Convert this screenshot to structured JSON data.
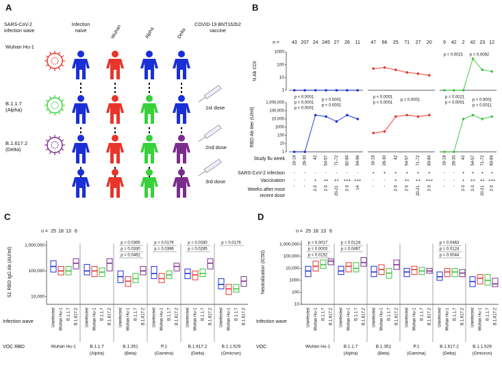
{
  "panel_a": {
    "label": "A",
    "wave_title": [
      "SARS-CoV-2",
      "infection wave"
    ],
    "columns": [
      [
        "Infection",
        "naive"
      ],
      [
        "Wuhan"
      ],
      [
        "Alpha"
      ],
      [
        "Delta"
      ]
    ],
    "vaccine_title": [
      "COVID-19 BNT162b2",
      "vaccine"
    ],
    "variants": [
      [
        "Wuhan Hu-1"
      ],
      [
        "B.1.1.7",
        "(Alpha)"
      ],
      [
        "B.1.617.2",
        "(Delta)"
      ]
    ],
    "doses": [
      "1st dose",
      "2nd dose",
      "3rd dose"
    ]
  },
  "panel_b": {
    "label": "B",
    "n_label": "n =",
    "log_scale": true,
    "top_y_label": "N Ab COI",
    "top_ylim": [
      1,
      1000
    ],
    "top_yticks": [
      1,
      10,
      100,
      1000
    ],
    "bottom_y_label": "RBD Ab titer (U/ml)",
    "bottom_ylim": [
      1,
      1000000
    ],
    "bottom_yticks": [
      1,
      10,
      100,
      1000,
      {
        "value": 10000,
        "label": "10,000"
      },
      {
        "value": 100000,
        "label": "100,000"
      },
      {
        "value": 1000000,
        "label": "1,000,000"
      }
    ],
    "row_labels": {
      "week": "Study flu week",
      "infection": "SARS-CoV-2 infection",
      "vaccination": "Vaccination",
      "weeks_after": [
        "Weeks after most",
        "recent dose"
      ]
    },
    "groups": [
      {
        "color": "#1a2fd6",
        "n": [
          43,
          207,
          24,
          245,
          27,
          26,
          11
        ],
        "weeks": [
          "16-18",
          "28-30",
          "42",
          "54-57",
          "71-72",
          "82-84",
          "94-96"
        ],
        "infection": [
          "-",
          "-",
          "-",
          "-",
          "-",
          "-",
          "-"
        ],
        "vaccination": [
          "-",
          "-",
          "+",
          "++",
          "++",
          "+++",
          "+++"
        ],
        "weeks_after": [
          "-",
          "-",
          "2-3",
          "2-3",
          "20-21",
          "2-3",
          "14"
        ],
        "top_values": [
          1,
          1,
          1,
          1,
          1,
          1,
          1
        ],
        "bottom_values": [
          1,
          1,
          30000,
          20000,
          5000,
          30000,
          10000
        ],
        "bottom_p_values": [
          "p < 0.0001",
          "p < 0.0001",
          "p = 0.0001",
          "p < 0.0001",
          "p < 0.0001"
        ]
      },
      {
        "color": "#e8352b",
        "n": [
          47,
          66,
          25,
          71,
          27,
          20
        ],
        "weeks": [
          "16-18",
          "28-30",
          "42",
          "54-57",
          "71-72",
          "83-84"
        ],
        "infection": [
          "+",
          "+",
          "+",
          "+",
          "+",
          "+"
        ],
        "vaccination": [
          "-",
          "-",
          "+",
          "++",
          "++",
          "+++"
        ],
        "weeks_after": [
          "-",
          "-",
          "2-3",
          "2-3",
          "20-21",
          "2-3"
        ],
        "top_values": [
          50,
          60,
          40,
          25,
          20,
          15
        ],
        "bottom_values": [
          200,
          300,
          20000,
          30000,
          20000,
          30000
        ],
        "bottom_p_values": [
          "p < 0.0001",
          "p = 0.0001",
          "p < 0.0001"
        ]
      },
      {
        "color": "#37c43a",
        "n": [
          9,
          42,
          2,
          42,
          23,
          12
        ],
        "weeks": [
          "16-18",
          "28-30",
          "42",
          "54-57",
          "71-72",
          "83-84"
        ],
        "infection": [
          "-",
          "-",
          "+",
          "+",
          "+",
          "+"
        ],
        "vaccination": [
          "-",
          "-",
          "+",
          "++",
          "++",
          "+++"
        ],
        "weeks_after": [
          "-",
          "-",
          "2-3",
          "2-3",
          "20-21",
          "2-3"
        ],
        "top_values": [
          1,
          1,
          1,
          300,
          40,
          30
        ],
        "bottom_values": [
          1,
          1,
          10000,
          30000,
          10000,
          20000
        ],
        "top_p_values": [
          "p = 0.0021",
          "p = 0.0082"
        ],
        "bottom_p_values": [
          "p = 0.0021",
          "p < 0.0001",
          "p < 0.0001",
          "p = 0.0011"
        ]
      }
    ]
  },
  "panel_c": {
    "label": "C",
    "n_label": "n =",
    "n": [
      25,
      18,
      13,
      6
    ],
    "y_label": "S1 RBD IgG Ab (AU/ml)",
    "log_scale": true,
    "ylim": [
      5000,
      1500000
    ],
    "yticks": [
      {
        "value": 10000,
        "label": "10,000"
      },
      {
        "value": 100000,
        "label": "100,000"
      },
      {
        "value": 1000000,
        "label": "1,000,000"
      }
    ],
    "wave_label": "Infection wave",
    "waves": [
      "Uninfected",
      "Wuhan Hu-1",
      "B.1.1.7",
      "B.1.617.2"
    ],
    "colors": [
      "#1a2fd6",
      "#e8352b",
      "#37c43a",
      "#7b2d8e"
    ],
    "voc_label": "VOC RBD",
    "groups": [
      {
        "voc": [
          "Wuhan Hu-1"
        ],
        "q1": [
          90000,
          70000,
          70000,
          120000
        ],
        "median": [
          150000,
          100000,
          100000,
          200000
        ],
        "q3": [
          250000,
          150000,
          150000,
          300000
        ]
      },
      {
        "voc": [
          "B.1.1.7",
          "(Alpha)"
        ],
        "q1": [
          70000,
          60000,
          60000,
          100000
        ],
        "median": [
          100000,
          100000,
          90000,
          200000
        ],
        "q3": [
          180000,
          150000,
          130000,
          300000
        ]
      },
      {
        "voc": [
          "B.1.351",
          "(Beta)"
        ],
        "q1": [
          35000,
          25000,
          35000,
          70000
        ],
        "median": [
          60000,
          40000,
          50000,
          100000
        ],
        "q3": [
          100000,
          60000,
          80000,
          150000
        ],
        "p_values": [
          "p = 0.0365",
          "p = 0.0330",
          "p = 0.0462"
        ]
      },
      {
        "voc": [
          "P.1",
          "(Gamma)"
        ],
        "q1": [
          50000,
          35000,
          50000,
          100000
        ],
        "median": [
          80000,
          50000,
          70000,
          150000
        ],
        "q3": [
          150000,
          80000,
          100000,
          200000
        ],
        "p_values": [
          "p = 0.0176",
          "p = 0.0396"
        ]
      },
      {
        "voc": [
          "B.1.617.2",
          "(Delta)"
        ],
        "q1": [
          50000,
          45000,
          60000,
          120000
        ],
        "median": [
          80000,
          70000,
          80000,
          200000
        ],
        "q3": [
          120000,
          100000,
          120000,
          300000
        ],
        "p_values": [
          "p = 0.0330",
          "p = 0.0285"
        ]
      },
      {
        "voc": [
          "B.1.1.529",
          "(Omicron)"
        ],
        "q1": [
          20000,
          12000,
          15000,
          25000
        ],
        "median": [
          30000,
          20000,
          20000,
          40000
        ],
        "q3": [
          50000,
          30000,
          30000,
          60000
        ],
        "p_values": [
          "p = 0.0176"
        ]
      }
    ]
  },
  "panel_d": {
    "label": "D",
    "n_label": "n =",
    "n": [
      25,
      18,
      13,
      6
    ],
    "y_label": "Neutralization (IC50)",
    "log_scale": true,
    "ylim": [
      10,
      2000000
    ],
    "yticks": [
      10,
      100,
      1000,
      {
        "value": 10000,
        "label": "10,000"
      },
      {
        "value": 100000,
        "label": "100,000"
      },
      {
        "value": 1000000,
        "label": "1,000,000"
      }
    ],
    "wave_label": "Infection wave",
    "waves": [
      "Uninfected",
      "Wuhan Hu-1",
      "B.1.1.7",
      "B.1.617.2"
    ],
    "colors": [
      "#1a2fd6",
      "#e8352b",
      "#37c43a",
      "#7b2d8e"
    ],
    "voc_label": "VOC",
    "groups": [
      {
        "voc": [
          "Wuhan Hu-1"
        ],
        "q1": [
          2000,
          6000,
          10000,
          20000
        ],
        "median": [
          6000,
          15000,
          20000,
          40000
        ],
        "q3": [
          15000,
          40000,
          50000,
          60000
        ],
        "p_values": [
          "p = 0.0017",
          "p = 0.0003",
          "p = 0.0152"
        ]
      },
      {
        "voc": [
          "B.1.1.7",
          "(Alpha)"
        ],
        "q1": [
          3000,
          5000,
          5000,
          15000
        ],
        "median": [
          6000,
          15000,
          10000,
          30000
        ],
        "q3": [
          15000,
          30000,
          30000,
          80000
        ],
        "p_values": [
          "p = 0.0124",
          "p = 0.0467"
        ]
      },
      {
        "voc": [
          "B.1.351",
          "(Beta)"
        ],
        "q1": [
          2000,
          3000,
          1500,
          8000
        ],
        "median": [
          5000,
          8000,
          4000,
          20000
        ],
        "q3": [
          15000,
          20000,
          10000,
          50000
        ]
      },
      {
        "voc": [
          "P.1",
          "(Gamma)"
        ],
        "q1": [
          2000,
          3000,
          3000,
          4000
        ],
        "median": [
          5000,
          8000,
          6000,
          6000
        ],
        "q3": [
          10000,
          15000,
          12000,
          10000
        ]
      },
      {
        "voc": [
          "B.1.617.2",
          "(Delta)"
        ],
        "q1": [
          1000,
          2000,
          2000,
          2000
        ],
        "median": [
          2000,
          5000,
          5000,
          4000
        ],
        "q3": [
          5000,
          10000,
          10000,
          8000
        ],
        "p_values": [
          "p = 0.0463",
          "p = 0.0124",
          "p = 0.0044"
        ]
      },
      {
        "voc": [
          "B.1.1.529",
          "(Omicron)"
        ],
        "q1": [
          300,
          500,
          400,
          300
        ],
        "median": [
          800,
          1500,
          1000,
          500
        ],
        "q3": [
          2000,
          3000,
          3000,
          1500
        ]
      }
    ]
  }
}
